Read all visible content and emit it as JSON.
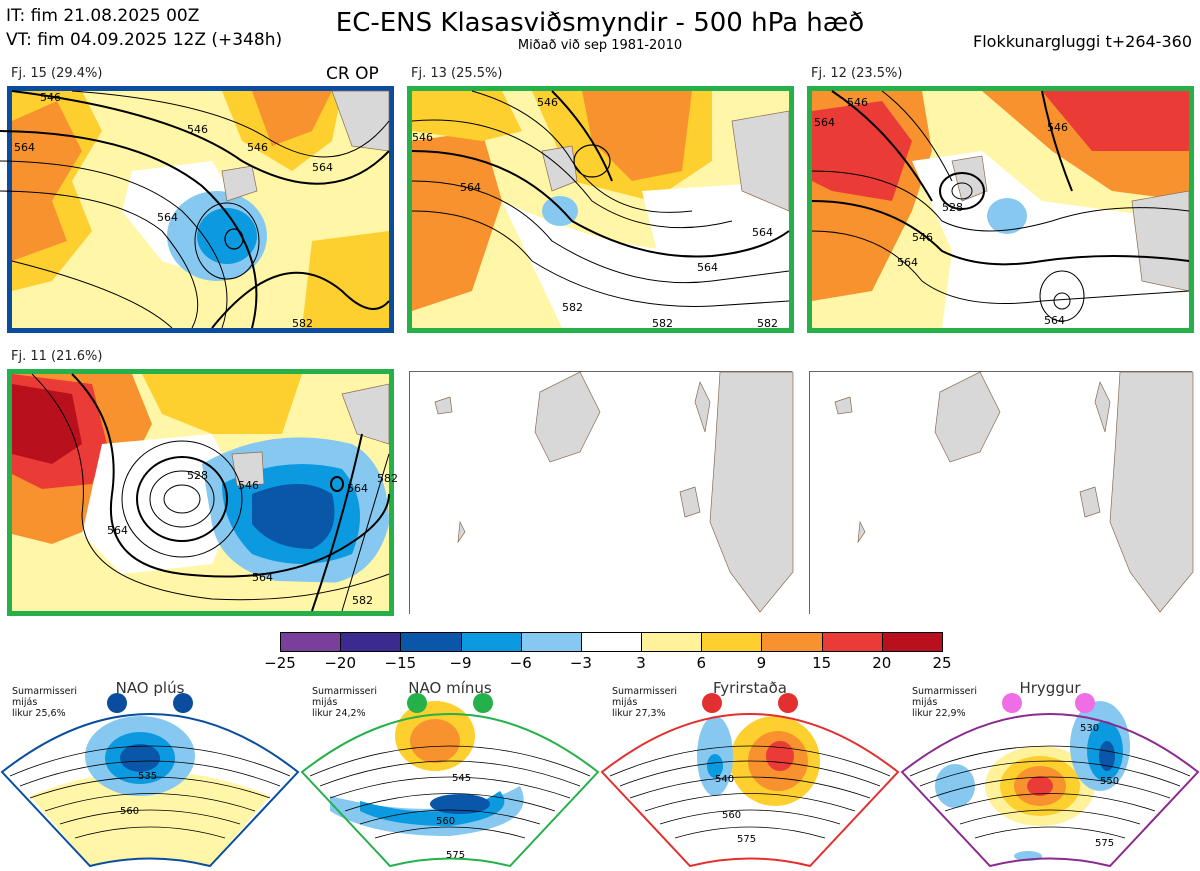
{
  "header": {
    "it": "IT: fim 21.08.2025 00Z",
    "vt": "VT: fim 04.09.2025 12Z  (+348h)",
    "title": "EC-ENS Klasasviðsmyndir - 500 hPa hæð",
    "subtitle": "Miðað við sep 1981-2010",
    "window": "Flokkunargluggi t+264-360"
  },
  "panels": [
    {
      "label": "Fj. 15 (29.4%)",
      "border_color": "#0a4d9e",
      "tag": "CR OP",
      "contours": [
        "546",
        "546",
        "564",
        "564",
        "546",
        "564",
        "582"
      ]
    },
    {
      "label": "Fj. 13 (25.5%)",
      "border_color": "#25b04a",
      "tag": "",
      "contours": [
        "546",
        "546",
        "564",
        "564",
        "564",
        "582",
        "582",
        "582"
      ]
    },
    {
      "label": "Fj. 12 (23.5%)",
      "border_color": "#25b04a",
      "tag": "",
      "contours": [
        "546",
        "564",
        "528",
        "546",
        "564",
        "546",
        "564"
      ]
    },
    {
      "label": "Fj. 11 (21.6%)",
      "border_color": "#25b04a",
      "tag": "",
      "contours": [
        "528",
        "546",
        "564",
        "564",
        "564",
        "582",
        "582"
      ]
    },
    {
      "label": "",
      "border_color": "",
      "tag": "",
      "contours": []
    },
    {
      "label": "",
      "border_color": "",
      "tag": "",
      "contours": []
    }
  ],
  "colorbar": {
    "ticks": [
      "−25",
      "−20",
      "−15",
      "−9",
      "−6",
      "−3",
      "3",
      "6",
      "9",
      "15",
      "20",
      "25"
    ],
    "colors": [
      "#7a3f9a",
      "#3b2a8f",
      "#0a56a8",
      "#0b9ae0",
      "#86c8ef",
      "#ffffff",
      "#fff29a",
      "#fdd030",
      "#f7922f",
      "#ea3b37",
      "#b8101c"
    ]
  },
  "regimes": [
    {
      "title": "NAO plús",
      "note": [
        "Sumarmisseri",
        "mijás",
        "likur 25,6%"
      ],
      "color": "#0a4d9e",
      "dot_color": "#0a4d9e",
      "contours": [
        "535",
        "560"
      ]
    },
    {
      "title": "NAO mínus",
      "note": [
        "Sumarmisseri",
        "mijás",
        "likur 24,2%"
      ],
      "color": "#25b04a",
      "dot_color": "#25b04a",
      "contours": [
        "545",
        "560",
        "575"
      ]
    },
    {
      "title": "Fyrirstaða",
      "note": [
        "Sumarmisseri",
        "mijás",
        "likur 27,3%"
      ],
      "color": "#e23030",
      "dot_color": "#e23030",
      "contours": [
        "540",
        "560",
        "575"
      ]
    },
    {
      "title": "Hryggur",
      "note": [
        "Sumarmisseri",
        "mijás",
        "likur 22,9%"
      ],
      "color": "#8a2a8f",
      "dot_color": "#ef6ee6",
      "contours": [
        "530",
        "550",
        "575"
      ]
    }
  ]
}
